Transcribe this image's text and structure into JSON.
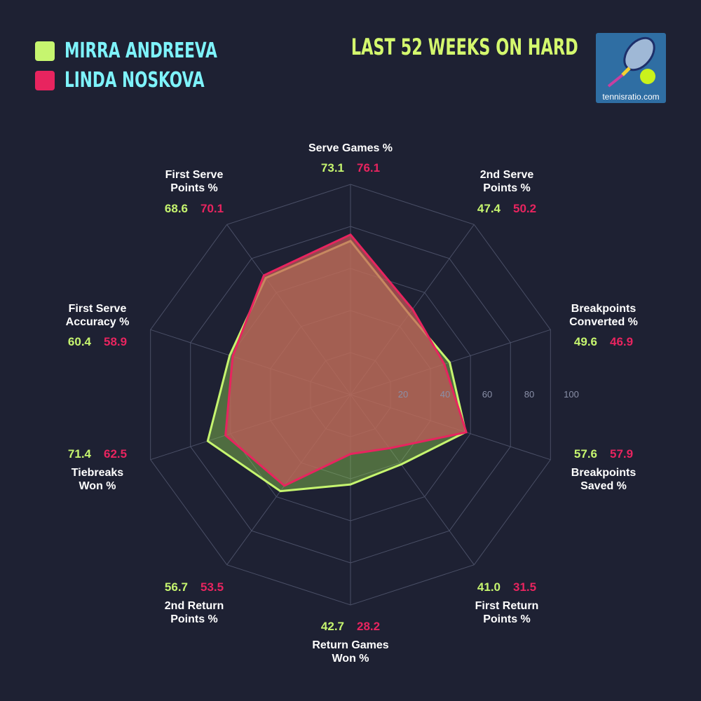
{
  "title": "LAST 52 WEEKS ON HARD",
  "logo": {
    "text": "tennisratio.com"
  },
  "chart_data": {
    "type": "radar",
    "title": "LAST 52 WEEKS ON HARD",
    "axes": [
      "Serve Games %",
      "2nd Serve\nPoints %",
      "Breakpoints\nConverted %",
      "Breakpoints\nSaved %",
      "First Return\nPoints %",
      "Return Games\nWon %",
      "2nd Return\nPoints %",
      "Tiebreaks\nWon %",
      "First Serve\nAccuracy %",
      "First Serve\nPoints %"
    ],
    "range": [
      0,
      100
    ],
    "ticks": [
      "20",
      "40",
      "60",
      "80",
      "100"
    ],
    "legend": "top-left",
    "series": [
      {
        "name": "MIRRA ANDREEVA",
        "color": "#c6f56f",
        "values": [
          73.1,
          47.4,
          49.6,
          57.6,
          41.0,
          42.7,
          56.7,
          71.4,
          60.4,
          68.6
        ]
      },
      {
        "name": "LINDA NOSKOVA",
        "color": "#e8245f",
        "values": [
          76.1,
          50.2,
          46.9,
          57.9,
          31.5,
          28.2,
          53.5,
          62.5,
          58.9,
          70.1
        ]
      }
    ]
  }
}
